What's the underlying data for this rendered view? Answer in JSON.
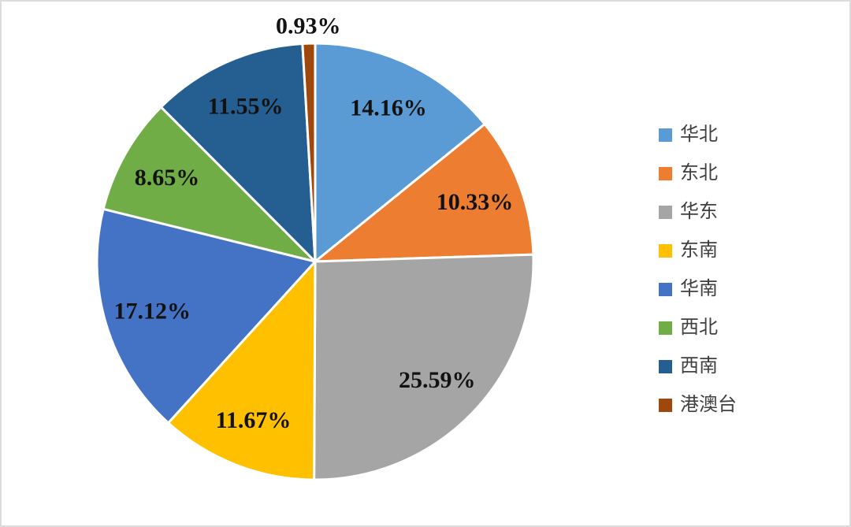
{
  "chart_data": {
    "type": "pie",
    "title": "",
    "legend_position": "right",
    "direction": "clockwise",
    "start_angle_deg": 0,
    "categories": [
      "华北",
      "东北",
      "华东",
      "东南",
      "华南",
      "西北",
      "西南",
      "港澳台"
    ],
    "values": [
      14.16,
      10.33,
      25.59,
      11.67,
      17.12,
      8.65,
      11.55,
      0.93
    ],
    "data_labels": [
      "14.16%",
      "10.33%",
      "25.59%",
      "11.67%",
      "17.12%",
      "8.65%",
      "11.55%",
      "0.93%"
    ],
    "colors": [
      "#5B9BD5",
      "#ED7D31",
      "#A5A5A5",
      "#FFC000",
      "#4472C4",
      "#70AD47",
      "#255E91",
      "#9E480E"
    ],
    "slice_border_color": "#FFFFFF",
    "label_color": "#121212"
  },
  "legend": {
    "items": [
      {
        "label": "华北",
        "color": "#5B9BD5"
      },
      {
        "label": "东北",
        "color": "#ED7D31"
      },
      {
        "label": "华东",
        "color": "#A5A5A5"
      },
      {
        "label": "东南",
        "color": "#FFC000"
      },
      {
        "label": "华南",
        "color": "#4472C4"
      },
      {
        "label": "西北",
        "color": "#70AD47"
      },
      {
        "label": "西南",
        "color": "#255E91"
      },
      {
        "label": "港澳台",
        "color": "#9E480E"
      }
    ]
  }
}
